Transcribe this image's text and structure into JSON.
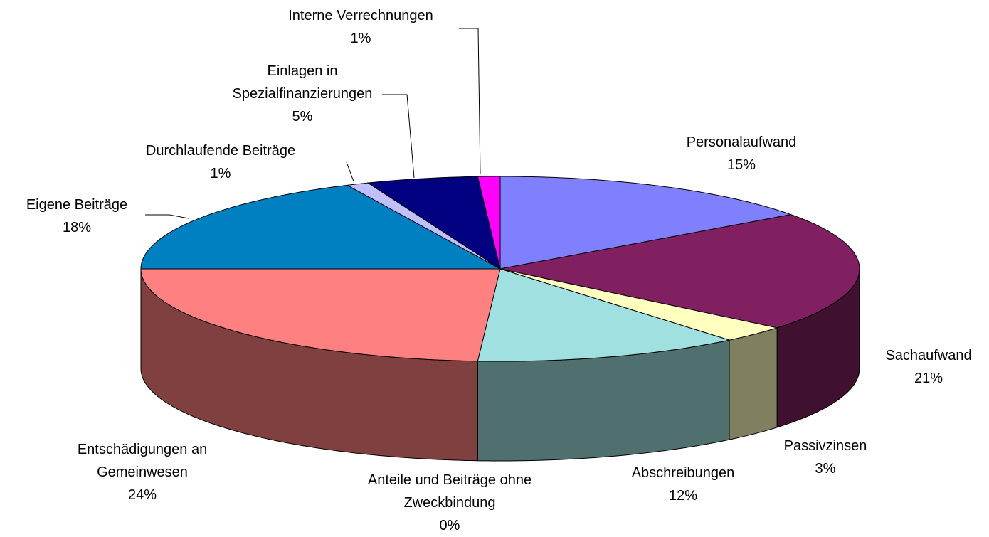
{
  "chart_data": {
    "type": "pie3d",
    "categories": [
      "Personalaufwand",
      "Sachaufwand",
      "Passivzinsen",
      "Abschreibungen",
      "Anteile und Beiträge ohne Zweckbindung",
      "Entschädigungen an Gemeinwesen",
      "Eigene Beiträge",
      "Durchlaufende Beiträge",
      "Einlagen in Spezialfinanzierungen",
      "Interne Verrechnungen"
    ],
    "values": [
      15,
      21,
      3,
      12,
      0,
      24,
      18,
      1,
      5,
      1
    ],
    "value_labels": [
      "15%",
      "21%",
      "3%",
      "12%",
      "0%",
      "24%",
      "18%",
      "1%",
      "5%",
      "1%"
    ],
    "colors": [
      "#8080ff",
      "#802060",
      "#ffffc0",
      "#a0e0e0",
      "#660066",
      "#ff8080",
      "#0080c0",
      "#c0c0ff",
      "#000080",
      "#ff00ff"
    ]
  }
}
